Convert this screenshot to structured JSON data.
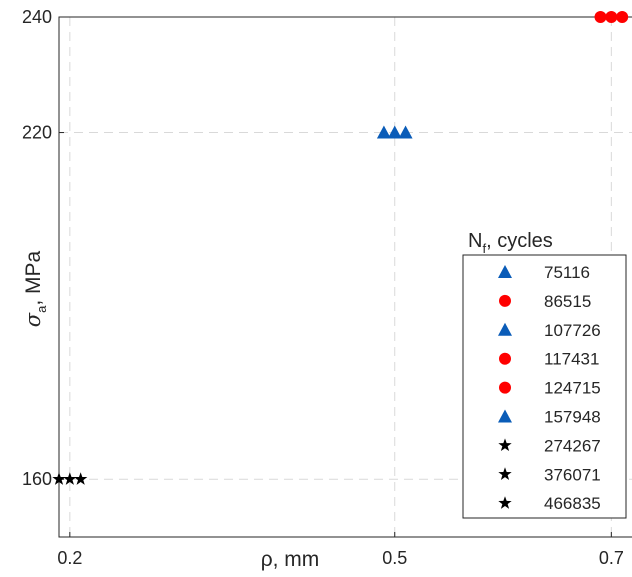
{
  "chart_data": {
    "type": "scatter",
    "xlabel": "ρ, mm",
    "ylabel_symbol": "σ",
    "ylabel_subscript": "a",
    "ylabel_unit": ", MPa",
    "xlim": [
      0.19,
      0.72
    ],
    "ylim": [
      150,
      240
    ],
    "x_ticks": [
      0.2,
      0.5,
      0.7
    ],
    "x_tick_labels": [
      "0.2",
      "0.5",
      "0.7"
    ],
    "y_ticks": [
      160,
      220,
      240
    ],
    "y_tick_labels": [
      "160",
      "220",
      "240"
    ],
    "grid": true,
    "legend_title_main": "N",
    "legend_title_sub": "f",
    "legend_title_rest": ", cycles",
    "legend_position": "right",
    "colors": {
      "blue": "#0a5cb8",
      "red": "#ff0000",
      "black": "#000000"
    },
    "series": [
      {
        "name": "75116",
        "marker": "triangle",
        "color": "#0a5cb8",
        "x": 0.49,
        "y": 220
      },
      {
        "name": "86515",
        "marker": "circle",
        "color": "#ff0000",
        "x": 0.69,
        "y": 240
      },
      {
        "name": "107726",
        "marker": "triangle",
        "color": "#0a5cb8",
        "x": 0.5,
        "y": 220
      },
      {
        "name": "117431",
        "marker": "circle",
        "color": "#ff0000",
        "x": 0.7,
        "y": 240
      },
      {
        "name": "124715",
        "marker": "circle",
        "color": "#ff0000",
        "x": 0.71,
        "y": 240
      },
      {
        "name": "157948",
        "marker": "triangle",
        "color": "#0a5cb8",
        "x": 0.51,
        "y": 220
      },
      {
        "name": "274267",
        "marker": "star",
        "color": "#000000",
        "x": 0.19,
        "y": 160
      },
      {
        "name": "376071",
        "marker": "star",
        "color": "#000000",
        "x": 0.2,
        "y": 160
      },
      {
        "name": "466835",
        "marker": "star",
        "color": "#000000",
        "x": 0.21,
        "y": 160
      }
    ]
  }
}
